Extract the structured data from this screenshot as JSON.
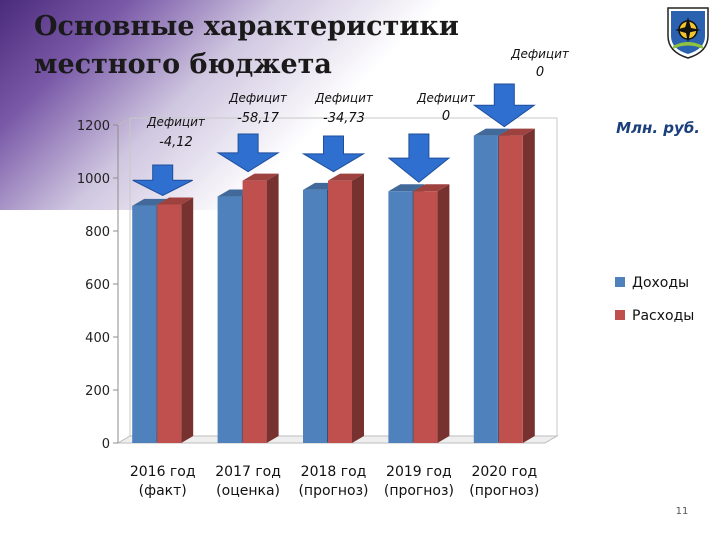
{
  "slide": {
    "title": "Основные характеристики местного бюджета",
    "page_number": "11"
  },
  "emblem": {
    "icon": "coat-of-arms-icon"
  },
  "colors": {
    "income": "#4f81bd",
    "expense": "#c0504d",
    "arrow": "#2f6fd0"
  },
  "chart_data": {
    "type": "bar",
    "style": "3d-clustered-column",
    "title": "",
    "xlabel": "",
    "ylabel": "",
    "unit_label": "Млн. руб.",
    "ylim": [
      0,
      1200
    ],
    "yticks": [
      "0",
      "200",
      "400",
      "600",
      "800",
      "1000",
      "1200"
    ],
    "grid": false,
    "legend_position": "right",
    "categories": [
      [
        "2016 год",
        "(факт)"
      ],
      [
        "2017 год",
        "(оценка)"
      ],
      [
        "2018 год",
        "(прогноз)"
      ],
      [
        "2019 год",
        "(прогноз)"
      ],
      [
        "2020 год",
        "(прогноз)"
      ]
    ],
    "series": [
      {
        "name": "Доходы",
        "values": [
          895,
          930,
          955,
          950,
          1160
        ]
      },
      {
        "name": "Расходы",
        "values": [
          900,
          990,
          990,
          950,
          1160
        ]
      }
    ],
    "annotations": [
      {
        "category_index": 0,
        "label": "Дефицит",
        "value": "-4,12"
      },
      {
        "category_index": 1,
        "label": "Дефицит",
        "value": "-58,17"
      },
      {
        "category_index": 2,
        "label": "Дефицит",
        "value": "-34,73"
      },
      {
        "category_index": 3,
        "label": "Дефицит",
        "value": "0"
      },
      {
        "category_index": 4,
        "label": "Дефицит",
        "value": "0"
      }
    ]
  }
}
